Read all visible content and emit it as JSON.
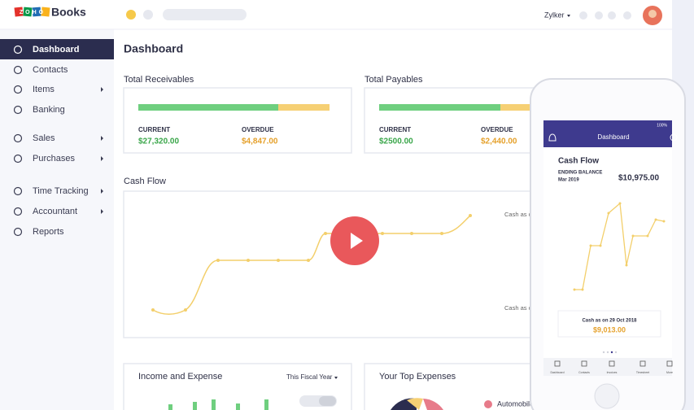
{
  "header": {
    "logo": "ZOHO",
    "product": "Books",
    "organization": "Zylker"
  },
  "sidebar": {
    "items": [
      "Dashboard",
      "Contacts",
      "Items",
      "Banking",
      "Sales",
      "Purchases",
      "Time Tracking",
      "Accountant",
      "Reports"
    ]
  },
  "main": {
    "title": "Dashboard",
    "receivables": {
      "title": "Total Receivables",
      "current_label": "CURRENT",
      "current": "$27,320.00",
      "overdue_label": "OVERDUE",
      "overdue": "$4,847.00"
    },
    "payables": {
      "title": "Total Payables",
      "current_label": "CURRENT",
      "current": "$2500.00",
      "overdue_label": "OVERDUE",
      "overdue": "$2,440.00"
    },
    "cash_flow": {
      "title": "Cash Flow",
      "labels": [
        "Cash as o",
        "Cash as o"
      ]
    },
    "income_expense": {
      "title": "Income and Expense",
      "period": "This Fiscal Year"
    },
    "top_expenses": {
      "title": "Your Top Expenses",
      "legend": [
        "Automobile"
      ]
    }
  },
  "phone": {
    "battery": "100%",
    "title": "Dashboard",
    "card_title": "Cash Flow",
    "ending_label": "ENDING BALANCE",
    "ending_date": "Mar 2019",
    "ending_value": "$10,975.00",
    "cash_on": "Cash as on  29 Oct 2018",
    "cash_value": "$9,013.00",
    "tabs": [
      "Dashboard",
      "Contacts",
      "Invoices",
      "Timesheet",
      "More"
    ]
  }
}
